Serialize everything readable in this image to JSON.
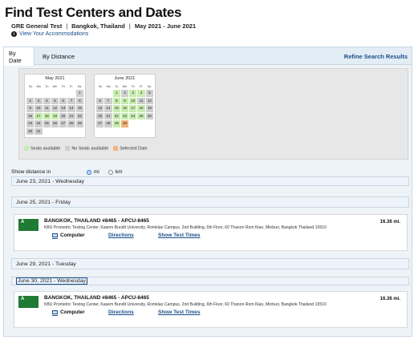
{
  "header": {
    "title": "Find Test Centers and Dates",
    "test_name": "GRE General Test",
    "location": "Bangkok, Thailand",
    "date_range": "May 2021 - June 2021",
    "accommodations_link": "View Your Accommodations"
  },
  "tabs": {
    "by_date": "By Date",
    "by_distance": "By Distance",
    "refine": "Refine Search Results"
  },
  "calendar": {
    "dow": [
      "Su",
      "Mo",
      "Tu",
      "We",
      "Th",
      "Fr",
      "Sa"
    ],
    "months": [
      {
        "title": "May 2021",
        "start_offset": 6,
        "days": 31,
        "available": [
          17,
          18,
          19
        ],
        "selected": []
      },
      {
        "title": "June 2021",
        "start_offset": 2,
        "days": 30,
        "available": [
          1,
          3,
          4,
          8,
          9,
          10,
          15,
          16,
          17,
          18,
          22,
          23,
          24,
          25,
          29
        ],
        "selected": [
          30
        ]
      }
    ],
    "legend": {
      "available": "Seats available",
      "none": "No Seats available",
      "selected": "Selected Date"
    }
  },
  "distance": {
    "label": "Show distance in",
    "options": [
      "mi",
      "km"
    ],
    "selected": "mi"
  },
  "results": [
    {
      "date": "June 23, 2021 - Wednesday"
    },
    {
      "date": "June 25, 2021 - Friday",
      "badge": "A",
      "center": "BANGKOK, THAILAND #8465 - APCU-8465",
      "address": "KBU Prometric Testing Center, Kasem Bundit University, Romklao Campus, 2nd Building, 6th Floor, 60 Thanon Rom Klao, Minburi, Bangkok Thailand 10510",
      "distance": "16.36 mi.",
      "mode": "Computer",
      "directions": "Directions",
      "times": "Show Test Times"
    },
    {
      "date": "June 29, 2021 - Tuesday"
    },
    {
      "date": "June 30, 2021 - Wednesday",
      "badge": "A",
      "center": "BANGKOK, THAILAND #8465 - APCU-8465",
      "address": "KBU Prometric Testing Center, Kasem Bundit University, Romklao Campus, 2nd Building, 6th Floor, 60 Thanon Rom Klao, Minburi, Bangkok Thailand 10510",
      "distance": "16.36 mi.",
      "mode": "Computer",
      "directions": "Directions",
      "times": "Show Test Times"
    }
  ],
  "colors": {
    "available": "#c8ecb0",
    "no_seats": "#cfcfcf",
    "selected": "#f4b27a",
    "link": "#1a4f8b",
    "badge": "#1f7a34"
  }
}
